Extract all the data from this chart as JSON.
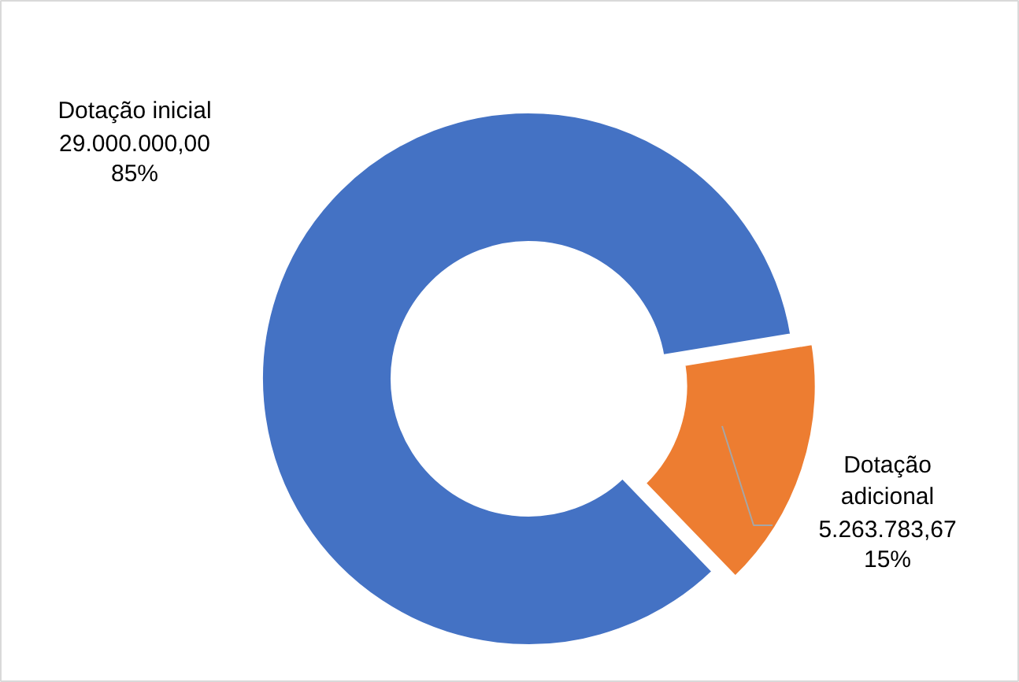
{
  "chart_data": {
    "type": "donut",
    "categories": [
      "Dotação inicial",
      "Dotação adicional"
    ],
    "values": [
      29000000.0,
      5263783.67
    ],
    "colors": [
      "#4472c4",
      "#ed7d31"
    ],
    "value_labels": [
      "29.000.000,00\n85%",
      "5.263.783,67\n15%"
    ]
  }
}
